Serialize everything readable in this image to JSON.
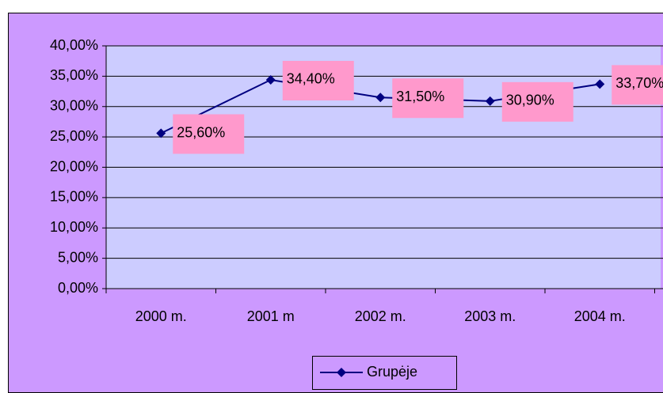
{
  "chart_data": {
    "type": "line",
    "categories": [
      "2000 m.",
      "2001 m",
      "2002 m.",
      "2003 m.",
      "2004 m."
    ],
    "series": [
      {
        "name": "Grupėje",
        "color": "#000080",
        "values": [
          25.6,
          34.4,
          31.5,
          30.9,
          33.7
        ],
        "value_labels": [
          "25,60%",
          "34,40%",
          "31,50%",
          "30,90%",
          "33,70%"
        ]
      }
    ],
    "ylim": [
      0,
      40
    ],
    "yticks": [
      {
        "value": 0,
        "label": "0,00%"
      },
      {
        "value": 5,
        "label": "5,00%"
      },
      {
        "value": 10,
        "label": "10,00%"
      },
      {
        "value": 15,
        "label": "15,00%"
      },
      {
        "value": 20,
        "label": "20,00%"
      },
      {
        "value": 25,
        "label": "25,00%"
      },
      {
        "value": 30,
        "label": "30,00%"
      },
      {
        "value": 35,
        "label": "35,00%"
      },
      {
        "value": 40,
        "label": "40,00%"
      }
    ],
    "grid": true,
    "legend": "bottom"
  }
}
